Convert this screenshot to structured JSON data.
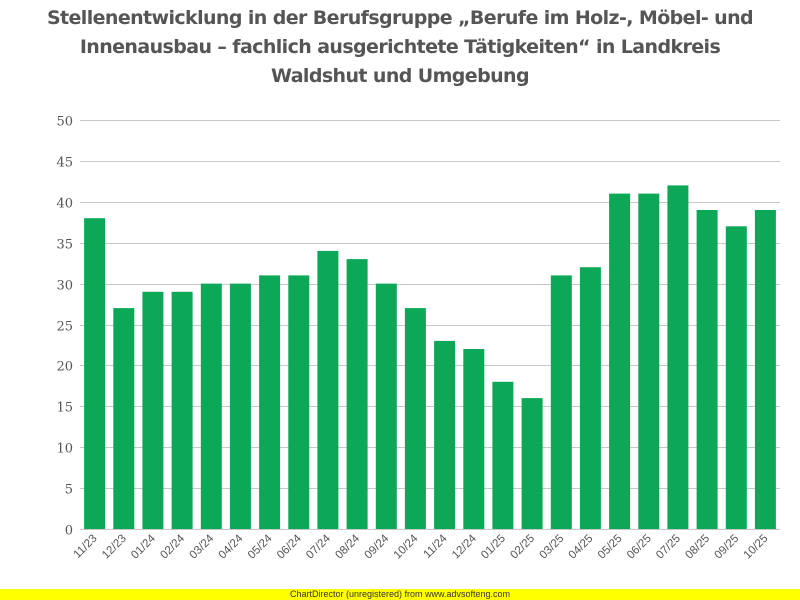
{
  "chart_data": {
    "type": "bar",
    "title": "Stellenentwicklung in der Berufsgruppe „Berufe im Holz-, Möbel- und Innenausbau – fachlich ausgerichtete Tätigkeiten“ in Landkreis Waldshut und Umgebung",
    "xlabel": "",
    "ylabel": "",
    "ylim": [
      0,
      50
    ],
    "yticks": [
      0,
      5,
      10,
      15,
      20,
      25,
      30,
      35,
      40,
      45,
      50
    ],
    "grid": true,
    "legend": "none",
    "bar_color": "#0ca858",
    "grid_color": "#c8c8c8",
    "categories": [
      "11/23",
      "12/23",
      "01/24",
      "02/24",
      "03/24",
      "04/24",
      "05/24",
      "06/24",
      "07/24",
      "08/24",
      "09/24",
      "10/24",
      "11/24",
      "12/24",
      "01/25",
      "02/25",
      "03/25",
      "04/25",
      "05/25",
      "06/25",
      "07/25",
      "08/25",
      "09/25",
      "10/25"
    ],
    "values": [
      38,
      27,
      29,
      29,
      30,
      30,
      31,
      31,
      34,
      33,
      30,
      27,
      23,
      22,
      18,
      16,
      31,
      32,
      41,
      41,
      42,
      39,
      37,
      39
    ]
  },
  "footer": {
    "text": "ChartDirector (unregistered) from www.advsofteng.com",
    "background": "#ffff00"
  }
}
